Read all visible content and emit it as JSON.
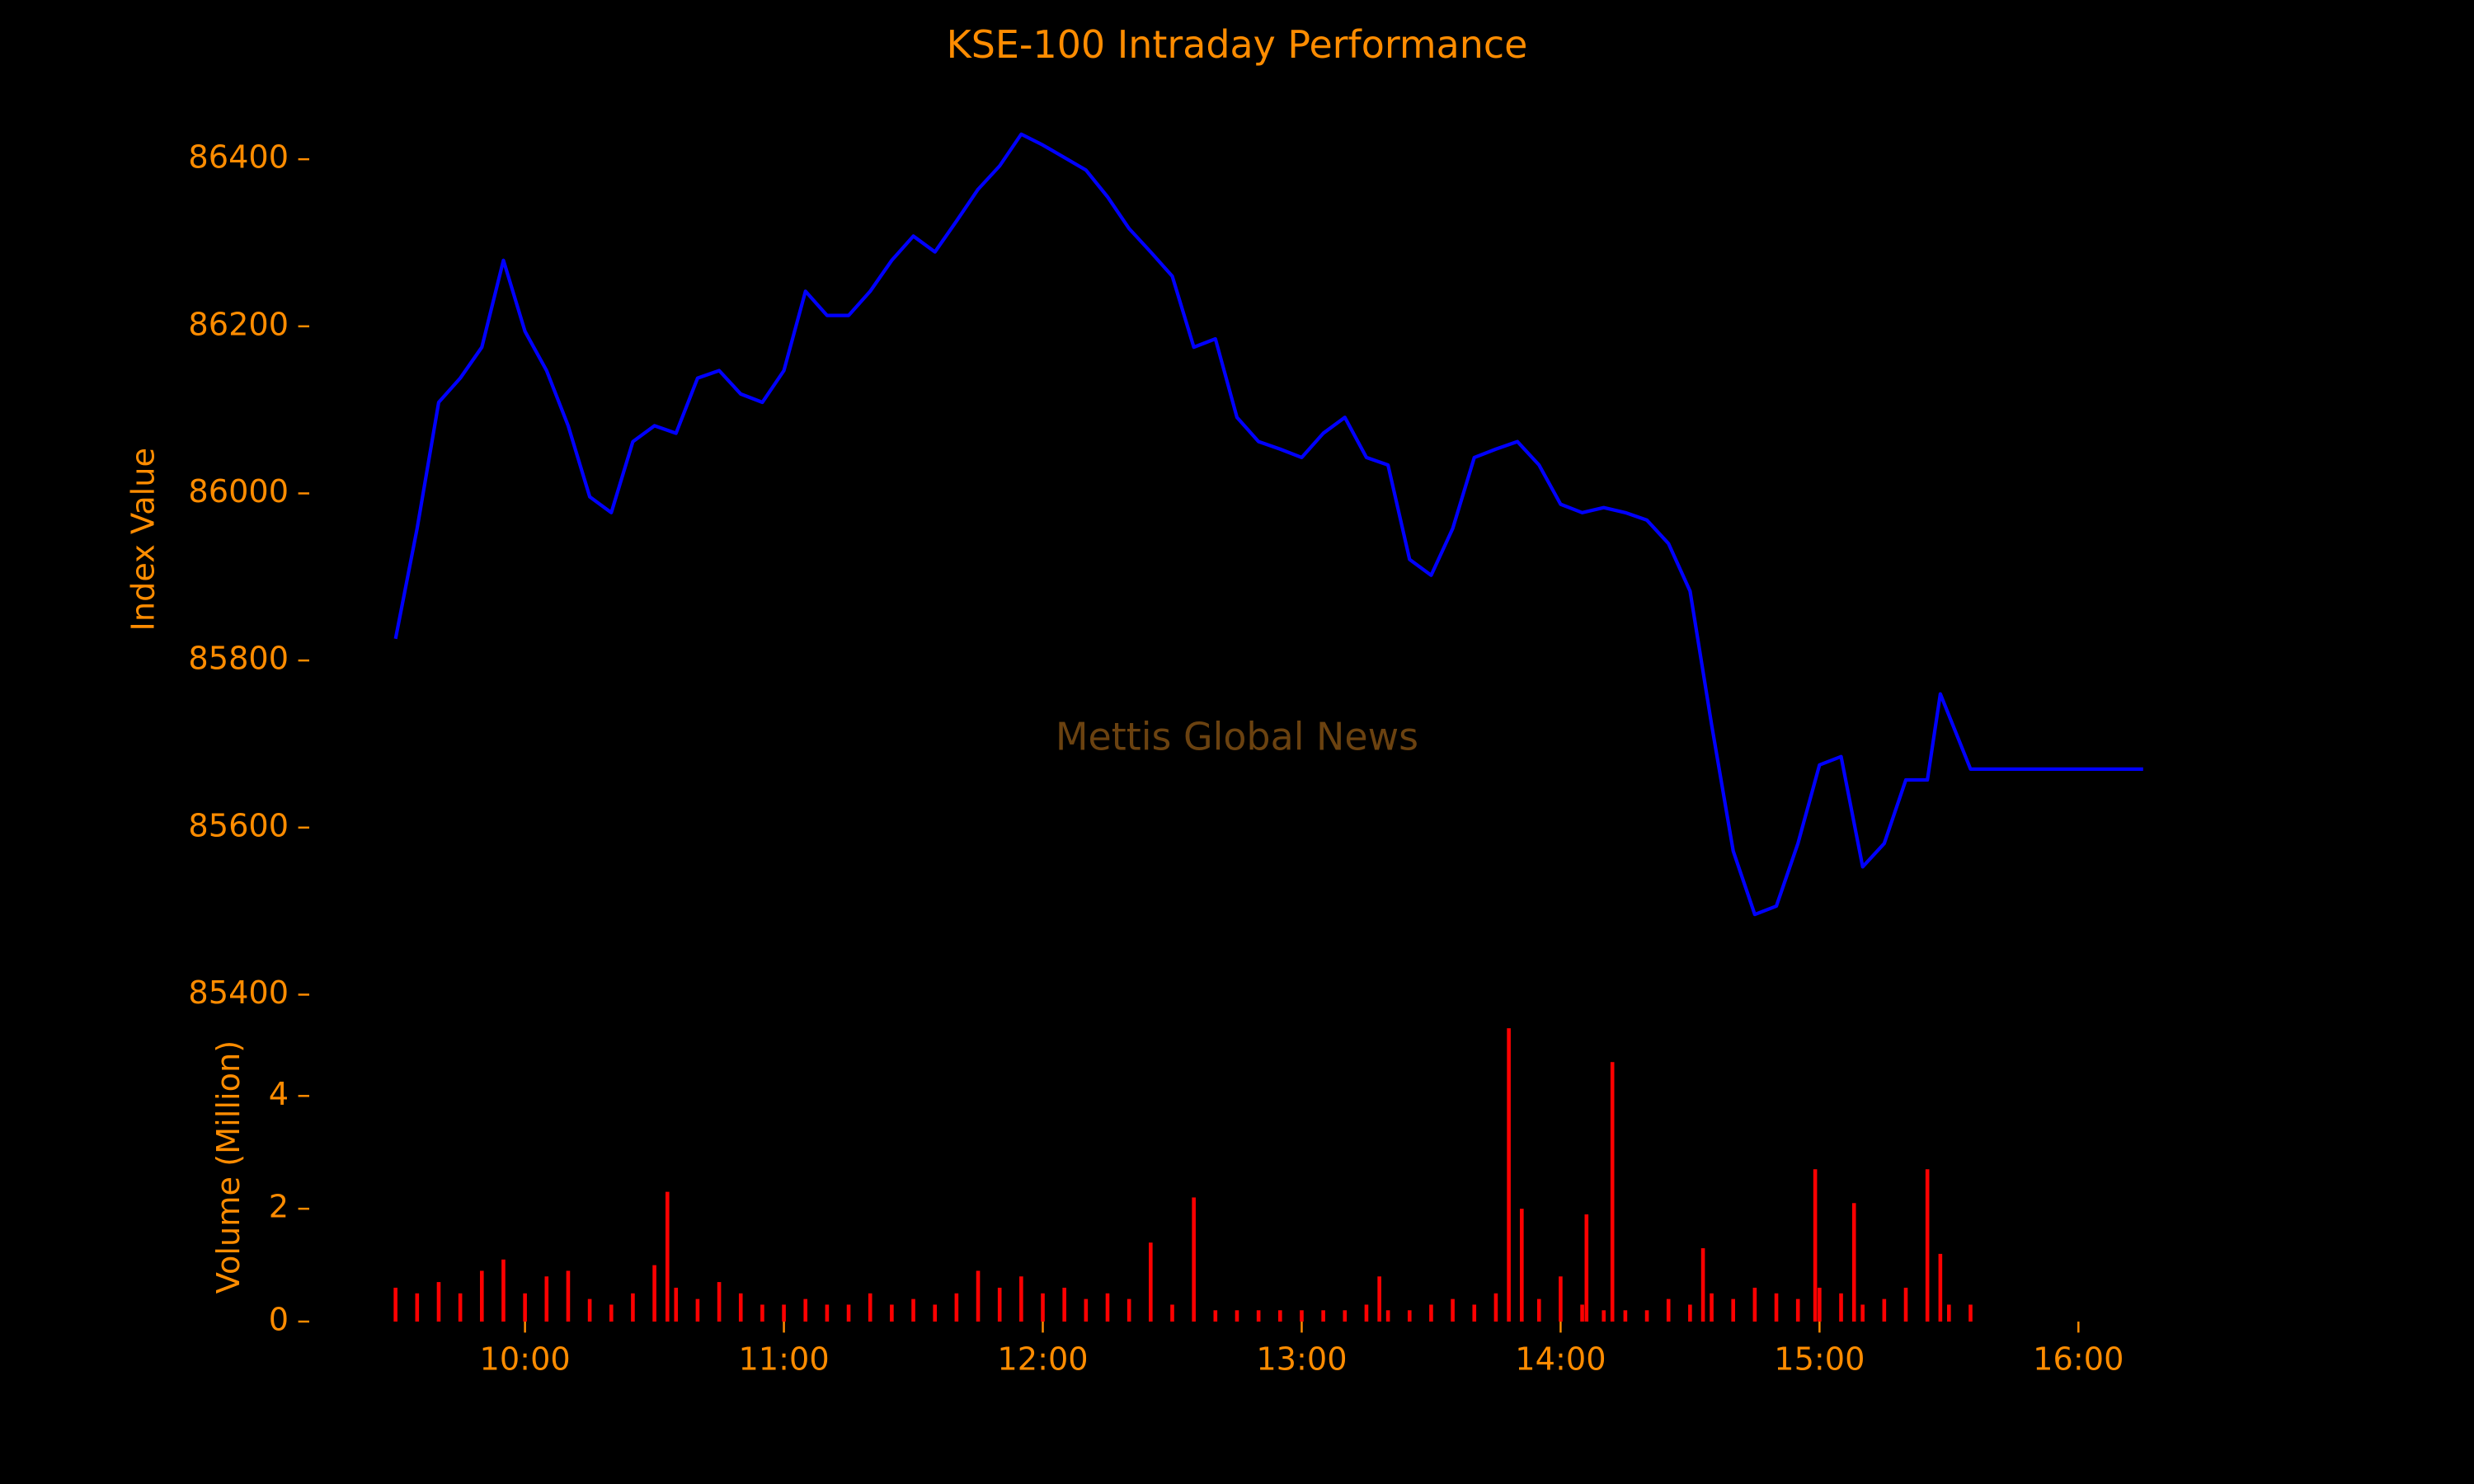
{
  "chart_data": [
    {
      "type": "line",
      "title": "KSE-100 Intraday Performance",
      "y_label": "Index Value",
      "annotation": "Mettis Global News",
      "xlim": [
        "09:10",
        "16:35"
      ],
      "ylim": [
        85390,
        86500
      ],
      "yticks": [
        85400,
        85600,
        85800,
        86000,
        86200,
        86400
      ],
      "x": [
        "09:30",
        "09:35",
        "09:40",
        "09:45",
        "09:50",
        "09:55",
        "10:00",
        "10:05",
        "10:10",
        "10:15",
        "10:20",
        "10:25",
        "10:30",
        "10:35",
        "10:40",
        "10:45",
        "10:50",
        "10:55",
        "11:00",
        "11:05",
        "11:10",
        "11:15",
        "11:20",
        "11:25",
        "11:30",
        "11:35",
        "11:40",
        "11:45",
        "11:50",
        "11:55",
        "12:00",
        "12:05",
        "12:10",
        "12:15",
        "12:20",
        "12:25",
        "12:30",
        "12:35",
        "12:40",
        "12:45",
        "12:50",
        "12:55",
        "13:00",
        "13:05",
        "13:10",
        "13:15",
        "13:20",
        "13:25",
        "13:30",
        "13:35",
        "13:40",
        "13:45",
        "13:50",
        "13:55",
        "14:00",
        "14:05",
        "14:10",
        "14:15",
        "14:20",
        "14:25",
        "14:30",
        "14:35",
        "14:40",
        "14:45",
        "14:50",
        "14:55",
        "15:00",
        "15:05",
        "15:10",
        "15:15",
        "15:20",
        "15:25",
        "15:28",
        "15:35",
        "16:15"
      ],
      "series": [
        {
          "name": "KSE-100",
          "color": "#0000ff",
          "values": [
            85826,
            85958,
            86109,
            86138,
            86175,
            86279,
            86194,
            86147,
            86081,
            85996,
            85977,
            86062,
            86081,
            86072,
            86138,
            86147,
            86119,
            86109,
            86147,
            86242,
            86213,
            86213,
            86242,
            86279,
            86308,
            86289,
            86326,
            86364,
            86392,
            86430,
            86417,
            86402,
            86387,
            86355,
            86317,
            86289,
            86260,
            86175,
            86185,
            86091,
            86062,
            86053,
            86043,
            86072,
            86091,
            86043,
            86034,
            85921,
            85902,
            85958,
            86043,
            86053,
            86062,
            86034,
            85987,
            85977,
            85983,
            85977,
            85968,
            85940,
            85883,
            85723,
            85572,
            85496,
            85506,
            85581,
            85675,
            85685,
            85553,
            85581,
            85657,
            85657,
            85760,
            85670,
            85670
          ]
        }
      ]
    },
    {
      "type": "bar",
      "y_label": "Volume (Million)",
      "xlim": [
        "09:10",
        "16:35"
      ],
      "xticks": [
        "10:00",
        "11:00",
        "12:00",
        "13:00",
        "14:00",
        "15:00",
        "16:00"
      ],
      "ylim": [
        0,
        5.2
      ],
      "yticks": [
        0,
        2,
        4
      ],
      "x": [
        "09:30",
        "09:35",
        "09:40",
        "09:45",
        "09:50",
        "09:55",
        "10:00",
        "10:05",
        "10:10",
        "10:15",
        "10:20",
        "10:25",
        "10:30",
        "10:33",
        "10:35",
        "10:40",
        "10:45",
        "10:50",
        "10:55",
        "11:00",
        "11:05",
        "11:10",
        "11:15",
        "11:20",
        "11:25",
        "11:30",
        "11:35",
        "11:40",
        "11:45",
        "11:50",
        "11:55",
        "12:00",
        "12:05",
        "12:10",
        "12:15",
        "12:20",
        "12:25",
        "12:30",
        "12:35",
        "12:40",
        "12:45",
        "12:50",
        "12:55",
        "13:00",
        "13:05",
        "13:10",
        "13:15",
        "13:18",
        "13:20",
        "13:25",
        "13:30",
        "13:35",
        "13:40",
        "13:45",
        "13:48",
        "13:51",
        "13:55",
        "14:00",
        "14:05",
        "14:06",
        "14:10",
        "14:12",
        "14:15",
        "14:20",
        "14:25",
        "14:30",
        "14:33",
        "14:35",
        "14:40",
        "14:45",
        "14:50",
        "14:55",
        "14:59",
        "15:00",
        "15:05",
        "15:08",
        "15:10",
        "15:15",
        "15:20",
        "15:25",
        "15:28",
        "15:30",
        "15:35"
      ],
      "series": [
        {
          "name": "Volume",
          "color": "#ff0000",
          "values": [
            0.6,
            0.5,
            0.7,
            0.5,
            0.9,
            1.1,
            0.5,
            0.8,
            0.9,
            0.4,
            0.3,
            0.5,
            1.0,
            2.3,
            0.6,
            0.4,
            0.7,
            0.5,
            0.3,
            0.3,
            0.4,
            0.3,
            0.3,
            0.5,
            0.3,
            0.4,
            0.3,
            0.5,
            0.9,
            0.6,
            0.8,
            0.5,
            0.6,
            0.4,
            0.5,
            0.4,
            1.4,
            0.3,
            2.2,
            0.2,
            0.2,
            0.2,
            0.2,
            0.2,
            0.2,
            0.2,
            0.3,
            0.8,
            0.2,
            0.2,
            0.3,
            0.4,
            0.3,
            0.5,
            5.2,
            2.0,
            0.4,
            0.8,
            0.3,
            1.9,
            0.2,
            4.6,
            0.2,
            0.2,
            0.4,
            0.3,
            1.3,
            0.5,
            0.4,
            0.6,
            0.5,
            0.4,
            2.7,
            0.6,
            0.5,
            2.1,
            0.3,
            0.4,
            0.6,
            2.7,
            1.2,
            0.3,
            0.3
          ]
        }
      ]
    }
  ]
}
